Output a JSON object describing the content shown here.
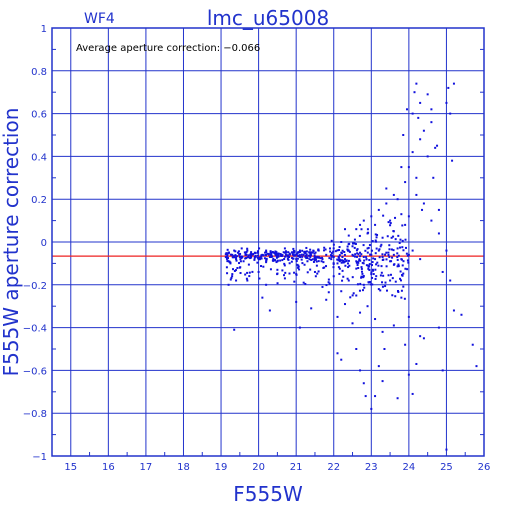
{
  "chart_data": {
    "type": "scatter",
    "title": "lmc_u65008",
    "subtitle": "WF4",
    "annotation": "Average aperture correction: −0.066",
    "xlabel": "F555W",
    "ylabel": "F555W aperture correction",
    "xlim": [
      14.5,
      26
    ],
    "ylim": [
      -1,
      1
    ],
    "x_ticks": [
      "15",
      "16",
      "17",
      "18",
      "19",
      "20",
      "21",
      "22",
      "23",
      "24",
      "25",
      "26"
    ],
    "y_ticks": [
      "−1",
      "−0.8",
      "−0.6",
      "−0.4",
      "−0.2",
      "0",
      "0.2",
      "0.4",
      "0.6",
      "0.8",
      "1"
    ],
    "grid": true,
    "reference_line": {
      "y": -0.066,
      "color": "#ee2222"
    },
    "point_color": "#1111dd",
    "axis_color": "#2233cc",
    "series": [
      {
        "points": [
          [
            19.15,
            -0.07
          ],
          [
            19.2,
            -0.05
          ],
          [
            19.25,
            -0.1
          ],
          [
            19.3,
            -0.06
          ],
          [
            19.35,
            -0.04
          ],
          [
            19.4,
            -0.08
          ],
          [
            19.45,
            -0.05
          ],
          [
            19.5,
            -0.07
          ],
          [
            19.55,
            -0.03
          ],
          [
            19.6,
            -0.09
          ],
          [
            19.65,
            -0.06
          ],
          [
            19.7,
            -0.04
          ],
          [
            19.8,
            -0.07
          ],
          [
            19.9,
            -0.05
          ],
          [
            20.0,
            -0.08
          ],
          [
            20.1,
            -0.06
          ],
          [
            20.2,
            -0.04
          ],
          [
            20.3,
            -0.07
          ],
          [
            20.4,
            -0.05
          ],
          [
            20.5,
            -0.09
          ],
          [
            20.6,
            -0.06
          ],
          [
            20.7,
            -0.03
          ],
          [
            20.8,
            -0.07
          ],
          [
            20.9,
            -0.05
          ],
          [
            21.0,
            -0.08
          ],
          [
            21.1,
            -0.04
          ],
          [
            21.2,
            -0.06
          ],
          [
            21.3,
            -0.09
          ],
          [
            21.4,
            -0.05
          ],
          [
            21.5,
            -0.07
          ],
          [
            21.6,
            -0.04
          ],
          [
            21.7,
            -0.08
          ],
          [
            21.8,
            -0.06
          ],
          [
            21.9,
            -0.03
          ],
          [
            22.0,
            -0.07
          ],
          [
            22.1,
            -0.1
          ],
          [
            22.2,
            -0.05
          ],
          [
            22.3,
            -0.08
          ],
          [
            22.4,
            -0.04
          ],
          [
            22.5,
            -0.06
          ],
          [
            22.6,
            -0.09
          ],
          [
            22.7,
            -0.05
          ],
          [
            22.8,
            -0.07
          ],
          [
            22.9,
            -0.03
          ],
          [
            23.0,
            -0.06
          ],
          [
            23.1,
            -0.08
          ],
          [
            23.2,
            -0.04
          ],
          [
            23.3,
            -0.07
          ],
          [
            23.4,
            -0.05
          ],
          [
            23.5,
            -0.09
          ],
          [
            23.6,
            -0.06
          ],
          [
            23.7,
            -0.03
          ],
          [
            23.8,
            -0.08
          ],
          [
            24.0,
            -0.06
          ],
          [
            24.1,
            -0.04
          ],
          [
            24.3,
            -0.08
          ],
          [
            19.3,
            -0.15
          ],
          [
            19.5,
            -0.12
          ],
          [
            19.7,
            -0.18
          ],
          [
            20.0,
            -0.14
          ],
          [
            20.2,
            -0.2
          ],
          [
            20.5,
            -0.13
          ],
          [
            20.7,
            -0.17
          ],
          [
            21.0,
            -0.15
          ],
          [
            21.2,
            -0.19
          ],
          [
            21.5,
            -0.14
          ],
          [
            21.7,
            -0.21
          ],
          [
            22.0,
            -0.16
          ],
          [
            22.2,
            -0.23
          ],
          [
            22.4,
            -0.18
          ],
          [
            22.6,
            -0.25
          ],
          [
            22.8,
            -0.2
          ],
          [
            23.0,
            -0.15
          ],
          [
            23.2,
            -0.22
          ],
          [
            23.5,
            -0.18
          ],
          [
            23.8,
            -0.26
          ],
          [
            19.2,
            -0.2
          ],
          [
            19.35,
            -0.41
          ],
          [
            19.4,
            -0.18
          ],
          [
            20.1,
            -0.26
          ],
          [
            20.3,
            -0.32
          ],
          [
            21.0,
            -0.28
          ],
          [
            21.1,
            -0.4
          ],
          [
            21.4,
            -0.31
          ],
          [
            21.8,
            -0.27
          ],
          [
            22.1,
            -0.35
          ],
          [
            22.3,
            -0.29
          ],
          [
            22.5,
            -0.38
          ],
          [
            22.7,
            -0.33
          ],
          [
            22.9,
            -0.3
          ],
          [
            23.1,
            -0.36
          ],
          [
            23.3,
            -0.42
          ],
          [
            23.6,
            -0.39
          ],
          [
            24.0,
            -0.35
          ],
          [
            24.3,
            -0.44
          ],
          [
            24.8,
            -0.4
          ],
          [
            22.1,
            -0.52
          ],
          [
            22.2,
            -0.55
          ],
          [
            22.6,
            -0.5
          ],
          [
            22.7,
            -0.6
          ],
          [
            22.8,
            -0.66
          ],
          [
            22.85,
            -0.72
          ],
          [
            23.0,
            -0.78
          ],
          [
            23.1,
            -0.72
          ],
          [
            23.2,
            -0.58
          ],
          [
            23.3,
            -0.65
          ],
          [
            23.35,
            -0.5
          ],
          [
            23.7,
            -0.73
          ],
          [
            24.0,
            -0.62
          ],
          [
            24.2,
            -0.57
          ],
          [
            24.4,
            -0.45
          ],
          [
            24.9,
            -0.6
          ],
          [
            25.0,
            -0.97
          ],
          [
            25.2,
            -0.32
          ],
          [
            25.4,
            -0.34
          ],
          [
            25.7,
            -0.48
          ],
          [
            25.8,
            -0.58
          ],
          [
            24.1,
            -0.71
          ],
          [
            23.9,
            -0.48
          ],
          [
            22.2,
            0.0
          ],
          [
            22.4,
            0.03
          ],
          [
            22.5,
            -0.02
          ],
          [
            22.6,
            0.06
          ],
          [
            22.8,
            0.1
          ],
          [
            22.9,
            0.04
          ],
          [
            23.0,
            0.12
          ],
          [
            23.1,
            0.08
          ],
          [
            23.2,
            0.15
          ],
          [
            23.3,
            0.02
          ],
          [
            23.4,
            0.18
          ],
          [
            23.5,
            0.1
          ],
          [
            23.6,
            0.05
          ],
          [
            23.7,
            0.2
          ],
          [
            23.8,
            0.13
          ],
          [
            23.9,
            0.08
          ],
          [
            23.4,
            0.25
          ],
          [
            23.6,
            0.22
          ],
          [
            22.7,
            0.08
          ],
          [
            22.3,
            0.06
          ],
          [
            23.9,
            0.28
          ],
          [
            24.0,
            0.35
          ],
          [
            24.1,
            0.42
          ],
          [
            24.2,
            0.3
          ],
          [
            24.3,
            0.48
          ],
          [
            24.4,
            0.52
          ],
          [
            24.5,
            0.4
          ],
          [
            24.6,
            0.56
          ],
          [
            24.7,
            0.44
          ],
          [
            24.2,
            0.22
          ],
          [
            24.0,
            0.12
          ],
          [
            24.4,
            0.18
          ],
          [
            24.6,
            0.1
          ],
          [
            24.8,
            0.04
          ],
          [
            25.0,
            -0.04
          ],
          [
            24.1,
            0.6
          ],
          [
            24.15,
            0.7
          ],
          [
            24.2,
            0.74
          ],
          [
            24.3,
            0.65
          ],
          [
            24.5,
            0.69
          ],
          [
            24.6,
            0.62
          ],
          [
            25.0,
            0.65
          ],
          [
            25.05,
            0.72
          ],
          [
            25.1,
            0.6
          ],
          [
            25.15,
            0.38
          ],
          [
            25.2,
            0.74
          ],
          [
            25.1,
            -0.18
          ],
          [
            24.9,
            -0.14
          ],
          [
            24.8,
            0.15
          ],
          [
            24.65,
            0.3
          ],
          [
            23.8,
            0.35
          ],
          [
            23.85,
            0.5
          ],
          [
            24.25,
            0.58
          ],
          [
            23.95,
            0.62
          ],
          [
            24.35,
            0.15
          ],
          [
            24.75,
            0.45
          ]
        ]
      }
    ]
  }
}
